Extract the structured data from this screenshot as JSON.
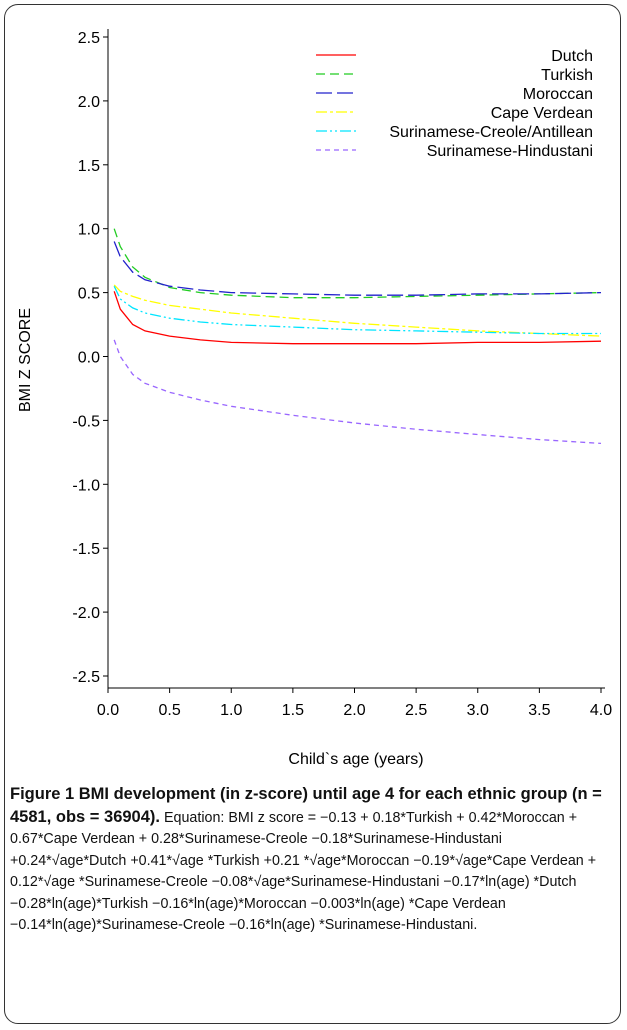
{
  "chart_data": {
    "type": "line",
    "xlabel": "Child`s age (years)",
    "ylabel": "BMI Z SCORE",
    "xlim": [
      0.0,
      4.0
    ],
    "ylim": [
      -2.5,
      2.5
    ],
    "x_ticks": [
      "0.0",
      "0.5",
      "1.0",
      "1.5",
      "2.0",
      "2.5",
      "3.0",
      "3.5",
      "4.0"
    ],
    "y_ticks": [
      "2.5",
      "2.0",
      "1.5",
      "1.0",
      "0.5",
      "0.0",
      "-0.5",
      "-1.0",
      "-1.5",
      "-2.0",
      "-2.5"
    ],
    "grid": false,
    "legend_position": "top-right",
    "series": [
      {
        "name": "Dutch",
        "color": "#ff0000",
        "dash": "none",
        "x": [
          0.05,
          0.1,
          0.2,
          0.3,
          0.5,
          0.75,
          1.0,
          1.5,
          2.0,
          2.5,
          3.0,
          3.5,
          4.0
        ],
        "y": [
          0.51,
          0.37,
          0.25,
          0.2,
          0.16,
          0.13,
          0.11,
          0.1,
          0.1,
          0.1,
          0.11,
          0.11,
          0.12
        ]
      },
      {
        "name": "Turkish",
        "color": "#22cc22",
        "dash": "9,5",
        "x": [
          0.05,
          0.1,
          0.2,
          0.3,
          0.5,
          0.75,
          1.0,
          1.5,
          2.0,
          2.5,
          3.0,
          3.5,
          4.0
        ],
        "y": [
          1.0,
          0.86,
          0.7,
          0.62,
          0.54,
          0.5,
          0.48,
          0.46,
          0.46,
          0.47,
          0.48,
          0.49,
          0.5
        ]
      },
      {
        "name": "Moroccan",
        "color": "#2222cc",
        "dash": "16,5",
        "x": [
          0.05,
          0.1,
          0.2,
          0.3,
          0.5,
          0.75,
          1.0,
          1.5,
          2.0,
          2.5,
          3.0,
          3.5,
          4.0
        ],
        "y": [
          0.9,
          0.78,
          0.66,
          0.6,
          0.55,
          0.52,
          0.5,
          0.49,
          0.48,
          0.48,
          0.49,
          0.49,
          0.5
        ]
      },
      {
        "name": "Cape Verdean",
        "color": "#ffff00",
        "dash": "11,3,3,3",
        "x": [
          0.05,
          0.1,
          0.2,
          0.3,
          0.5,
          0.75,
          1.0,
          1.5,
          2.0,
          2.5,
          3.0,
          3.5,
          4.0
        ],
        "y": [
          0.56,
          0.51,
          0.47,
          0.44,
          0.4,
          0.37,
          0.34,
          0.3,
          0.26,
          0.23,
          0.2,
          0.18,
          0.16
        ]
      },
      {
        "name": "Surinamese-Creole/Antillean",
        "color": "#00e5ff",
        "dash": "11,3,2,3,2,3",
        "x": [
          0.05,
          0.1,
          0.2,
          0.3,
          0.5,
          0.75,
          1.0,
          1.5,
          2.0,
          2.5,
          3.0,
          3.5,
          4.0
        ],
        "y": [
          0.55,
          0.45,
          0.38,
          0.34,
          0.3,
          0.27,
          0.25,
          0.23,
          0.21,
          0.2,
          0.19,
          0.18,
          0.18
        ]
      },
      {
        "name": "Surinamese-Hindustani",
        "color": "#9966ff",
        "dash": "5,4",
        "x": [
          0.05,
          0.1,
          0.2,
          0.3,
          0.5,
          0.75,
          1.0,
          1.5,
          2.0,
          2.5,
          3.0,
          3.5,
          4.0
        ],
        "y": [
          0.13,
          0.0,
          -0.14,
          -0.21,
          -0.28,
          -0.34,
          -0.39,
          -0.46,
          -0.52,
          -0.57,
          -0.61,
          -0.65,
          -0.68
        ]
      }
    ]
  },
  "caption": {
    "label": "Figure 1 BMI development (in z-score) until age 4 for each ethnic group (n = 4581, obs = 36904).",
    "text": " Equation: BMI z score = −0.13 + 0.18*Turkish + 0.42*Moroccan + 0.67*Cape Verdean + 0.28*Surinamese-Creole −0.18*Surinamese-Hindustani +0.24*√age*Dutch +0.41*√age *Turkish +0.21 *√age*Moroccan −0.19*√age*Cape Verdean + 0.12*√age *Surinamese-Creole −0.08*√age*Surinamese-Hindustani −0.17*ln(age) *Dutch −0.28*ln(age)*Turkish −0.16*ln(age)*Moroccan −0.003*ln(age) *Cape Verdean −0.14*ln(age)*Surinamese-Creole −0.16*ln(age) *Surinamese-Hindustani."
  }
}
